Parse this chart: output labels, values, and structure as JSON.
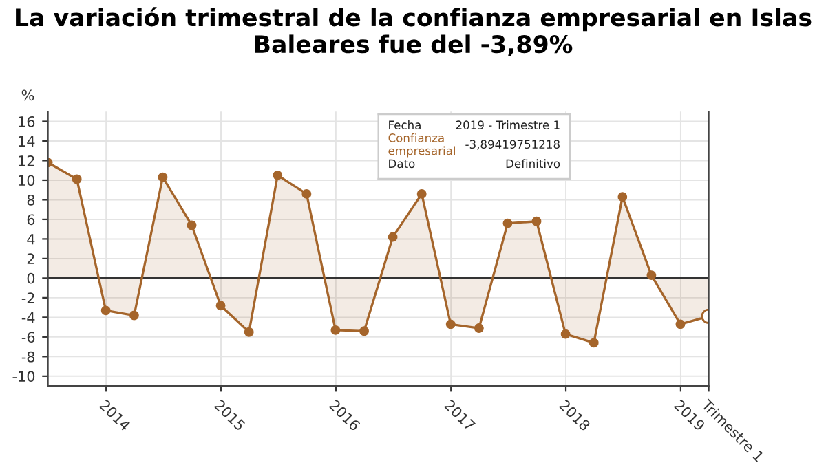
{
  "chart_data": {
    "type": "area",
    "title": "La variación trimestral de la confianza empresarial en Islas Baleares fue del -3,89%",
    "ylabel": "%",
    "x": [
      "2013-06-30",
      "2013-09-30",
      "2013-12-31",
      "2014-03-31",
      "2014-06-30",
      "2014-09-30",
      "2014-12-31",
      "2015-03-31",
      "2015-06-30",
      "2015-09-30",
      "2015-12-31",
      "2016-03-31",
      "2016-06-30",
      "2016-09-30",
      "2016-12-31",
      "2017-03-31",
      "2017-06-30",
      "2017-09-30",
      "2017-12-31",
      "2018-03-31",
      "2018-06-30",
      "2018-09-30",
      "2018-12-31",
      "2019-03-31"
    ],
    "series": [
      {
        "color": "#a5652b",
        "values": [
          11.8,
          10.1,
          -3.3,
          -3.8,
          10.3,
          5.4,
          -2.8,
          -5.5,
          10.5,
          8.6,
          -5.3,
          -5.4,
          4.2,
          8.6,
          -4.7,
          -5.1,
          5.6,
          5.8,
          -5.7,
          -6.6,
          8.3,
          0.3,
          -4.7,
          -3.89
        ]
      }
    ],
    "ylim": [
      -11,
      17
    ],
    "yticks": [
      -10,
      -8,
      -6,
      -4,
      -2,
      0,
      2,
      4,
      6,
      8,
      10,
      12,
      14,
      16
    ],
    "xlim": [
      "2013-06-30",
      "2019-03-31"
    ],
    "xticks": [
      {
        "value": "2014-01-01",
        "label": "2014"
      },
      {
        "value": "2015-01-01",
        "label": "2015"
      },
      {
        "value": "2016-01-01",
        "label": "2016"
      },
      {
        "value": "2017-01-01",
        "label": "2017"
      },
      {
        "value": "2018-01-01",
        "label": "2018"
      },
      {
        "value": "2019-01-01",
        "label": "2019"
      },
      {
        "value": "2019-03-31",
        "label": "Trimestre 1"
      }
    ],
    "ref_lines": [
      {
        "axis": "y",
        "value": 0,
        "color": "#333333"
      }
    ],
    "grid": true,
    "marker": "circle",
    "line_style": "solid",
    "annotations": [
      "Fecha",
      "2019 - Trimestre 1",
      "Confianza empresarial",
      "-3,89419751218",
      "Dato",
      "Definitivo"
    ]
  }
}
